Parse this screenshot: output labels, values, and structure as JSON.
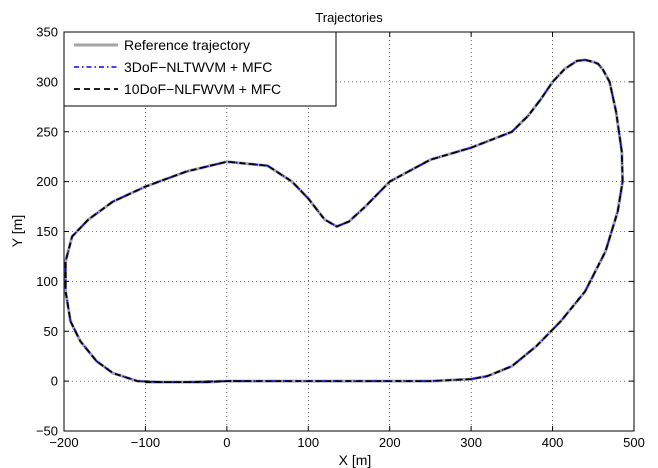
{
  "chart_data": {
    "type": "line",
    "title": "Trajectories",
    "xlabel": "X [m]",
    "ylabel": "Y [m]",
    "xlim": [
      -200,
      500
    ],
    "ylim": [
      -50,
      350
    ],
    "xticks": [
      -200,
      -100,
      0,
      100,
      200,
      300,
      400,
      500
    ],
    "yticks": [
      -50,
      0,
      50,
      100,
      150,
      200,
      250,
      300,
      350
    ],
    "grid": true,
    "legend_position": "top-left",
    "series": [
      {
        "name": "Reference trajectory",
        "color": "#a6a6a6",
        "style": "solid",
        "x": [
          -100,
          -50,
          0,
          50,
          100,
          150,
          200,
          250,
          300,
          320,
          350,
          380,
          410,
          440,
          465,
          480,
          486,
          485,
          478,
          470,
          462,
          456,
          450,
          440,
          430,
          415,
          400,
          385,
          370,
          350,
          300,
          250,
          200,
          170,
          150,
          135,
          120,
          100,
          80,
          50,
          0,
          -50,
          -100,
          -140,
          -170,
          -190,
          -198,
          -198,
          -192,
          -180,
          -160,
          -140,
          -110,
          -80,
          -50,
          -25,
          0,
          15,
          30
        ],
        "y": [
          -1,
          -1,
          0,
          0,
          0,
          0,
          0,
          0,
          2,
          5,
          15,
          35,
          60,
          90,
          130,
          170,
          200,
          230,
          270,
          300,
          312,
          318,
          320,
          322,
          321,
          313,
          300,
          282,
          266,
          250,
          234,
          222,
          200,
          175,
          160,
          155,
          162,
          183,
          200,
          216,
          220,
          210,
          195,
          180,
          162,
          145,
          120,
          90,
          60,
          40,
          20,
          8,
          0,
          -1,
          -1,
          -1,
          0,
          0,
          0
        ]
      },
      {
        "name": "3DoF−NLTWVM + MFC",
        "color": "#0000ff",
        "style": "dash-dot",
        "x": [
          -100,
          -50,
          0,
          50,
          100,
          150,
          200,
          250,
          300,
          320,
          350,
          380,
          410,
          440,
          465,
          480,
          486,
          485,
          478,
          470,
          462,
          456,
          450,
          440,
          430,
          415,
          400,
          385,
          370,
          350,
          300,
          250,
          200,
          170,
          150,
          135,
          120,
          100,
          80,
          50,
          0,
          -50,
          -100,
          -140,
          -170,
          -190,
          -198,
          -198,
          -192,
          -180,
          -160,
          -140,
          -110,
          -80,
          -50,
          -25,
          0,
          15,
          30
        ],
        "y": [
          -1,
          -1,
          0,
          0,
          0,
          0,
          0,
          0,
          2,
          5,
          15,
          35,
          60,
          90,
          130,
          170,
          200,
          230,
          270,
          300,
          312,
          318,
          320,
          322,
          321,
          313,
          300,
          282,
          266,
          250,
          234,
          222,
          200,
          175,
          160,
          155,
          162,
          183,
          200,
          216,
          220,
          210,
          195,
          180,
          162,
          145,
          120,
          90,
          60,
          40,
          20,
          8,
          0,
          -1,
          -1,
          -1,
          0,
          0,
          0
        ]
      },
      {
        "name": "10DoF−NLFWVM + MFC",
        "color": "#000000",
        "style": "dashed",
        "x": [
          -100,
          -50,
          0,
          50,
          100,
          150,
          200,
          250,
          300,
          320,
          350,
          380,
          410,
          440,
          465,
          480,
          486,
          485,
          478,
          470,
          462,
          456,
          450,
          440,
          430,
          415,
          400,
          385,
          370,
          350,
          300,
          250,
          200,
          170,
          150,
          135,
          120,
          100,
          80,
          50,
          0,
          -50,
          -100,
          -140,
          -170,
          -190,
          -198,
          -198,
          -192,
          -180,
          -160,
          -140,
          -110,
          -80,
          -50,
          -25,
          0,
          15,
          30
        ],
        "y": [
          -1,
          -1,
          0,
          0,
          0,
          0,
          0,
          0,
          2,
          5,
          15,
          35,
          60,
          90,
          130,
          170,
          200,
          230,
          270,
          300,
          312,
          318,
          320,
          322,
          321,
          313,
          300,
          282,
          266,
          250,
          234,
          222,
          200,
          175,
          160,
          155,
          162,
          183,
          200,
          216,
          220,
          210,
          195,
          180,
          162,
          145,
          120,
          90,
          60,
          40,
          20,
          8,
          0,
          -1,
          -1,
          -1,
          0,
          0,
          0
        ]
      }
    ]
  }
}
